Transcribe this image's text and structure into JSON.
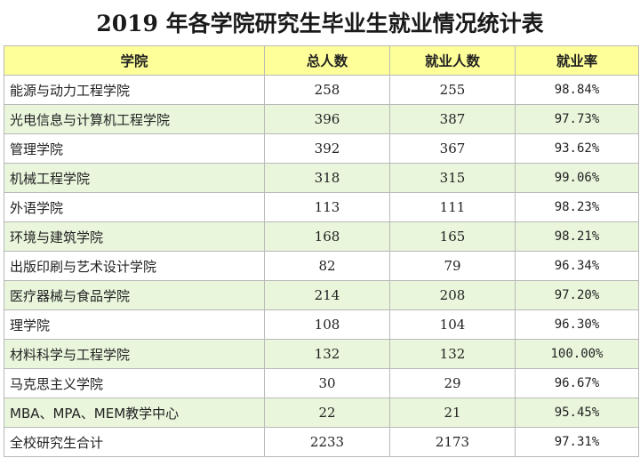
{
  "title": "2019 年各学院研究生毕业生就业情况统计表",
  "headers": [
    "学院",
    "总人数",
    "就业人数",
    "就业率"
  ],
  "rows": [
    {
      "college": "能源与动力工程学院",
      "total": "258",
      "employed": "255",
      "rate": "98.84%"
    },
    {
      "college": "光电信息与计算机工程学院",
      "total": "396",
      "employed": "387",
      "rate": "97.73%"
    },
    {
      "college": "管理学院",
      "total": "392",
      "employed": "367",
      "rate": "93.62%"
    },
    {
      "college": "机械工程学院",
      "total": "318",
      "employed": "315",
      "rate": "99.06%"
    },
    {
      "college": "外语学院",
      "total": "113",
      "employed": "111",
      "rate": "98.23%"
    },
    {
      "college": "环境与建筑学院",
      "total": "168",
      "employed": "165",
      "rate": "98.21%"
    },
    {
      "college": "出版印刷与艺术设计学院",
      "total": "82",
      "employed": "79",
      "rate": "96.34%"
    },
    {
      "college": "医疗器械与食品学院",
      "total": "214",
      "employed": "208",
      "rate": "97.20%"
    },
    {
      "college": "理学院",
      "total": "108",
      "employed": "104",
      "rate": "96.30%"
    },
    {
      "college": "材料科学与工程学院",
      "total": "132",
      "employed": "132",
      "rate": "100.00%"
    },
    {
      "college": "马克思主义学院",
      "total": "30",
      "employed": "29",
      "rate": "96.67%"
    },
    {
      "college": "MBA、MPA、MEM教学中心",
      "total": "22",
      "employed": "21",
      "rate": "95.45%"
    },
    {
      "college": "全校研究生合计",
      "total": "2233",
      "employed": "2173",
      "rate": "97.31%"
    }
  ],
  "colors": {
    "header_bg": "#ffff99",
    "alt_row_bg": "#e9f6dc",
    "row_bg": "#ffffff",
    "border": "#b9b9b9"
  }
}
